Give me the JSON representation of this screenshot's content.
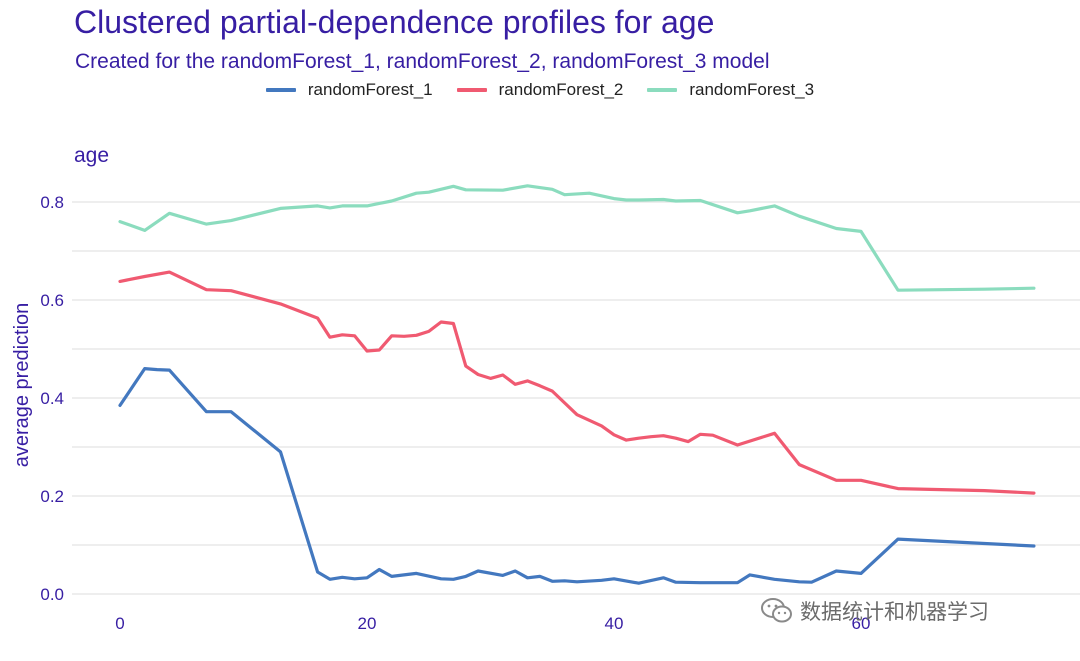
{
  "chart_data": {
    "type": "line",
    "title": "Clustered partial-dependence profiles for age",
    "subtitle": "Created for the randomForest_1, randomForest_2, randomForest_3 model",
    "panel_label": "age",
    "xlabel": "",
    "ylabel": "average prediction",
    "xlim": [
      0,
      74
    ],
    "ylim": [
      0,
      0.86
    ],
    "x_ticks": [
      0,
      20,
      40,
      60
    ],
    "y_ticks": [
      0.0,
      0.2,
      0.4,
      0.6,
      0.8
    ],
    "y_tick_labels": [
      "0.0",
      "0.2",
      "0.4",
      "0.6",
      "0.8"
    ],
    "grid": true,
    "legend_position": "top",
    "series": [
      {
        "name": "randomForest_1",
        "color": "#4378bf",
        "points": [
          [
            0,
            0.385
          ],
          [
            2,
            0.46
          ],
          [
            3,
            0.458
          ],
          [
            4,
            0.457
          ],
          [
            7,
            0.372
          ],
          [
            9,
            0.372
          ],
          [
            13,
            0.29
          ],
          [
            16,
            0.045
          ],
          [
            17,
            0.03
          ],
          [
            18,
            0.034
          ],
          [
            19,
            0.031
          ],
          [
            20,
            0.033
          ],
          [
            21,
            0.05
          ],
          [
            22,
            0.036
          ],
          [
            24,
            0.042
          ],
          [
            26,
            0.031
          ],
          [
            27,
            0.03
          ],
          [
            28,
            0.036
          ],
          [
            29,
            0.047
          ],
          [
            31,
            0.038
          ],
          [
            32,
            0.047
          ],
          [
            33,
            0.033
          ],
          [
            34,
            0.036
          ],
          [
            35,
            0.026
          ],
          [
            36,
            0.027
          ],
          [
            37,
            0.025
          ],
          [
            39,
            0.028
          ],
          [
            40,
            0.031
          ],
          [
            42,
            0.022
          ],
          [
            44,
            0.033
          ],
          [
            45,
            0.024
          ],
          [
            47,
            0.023
          ],
          [
            49,
            0.023
          ],
          [
            50,
            0.023
          ],
          [
            51,
            0.039
          ],
          [
            53,
            0.03
          ],
          [
            55,
            0.025
          ],
          [
            56,
            0.024
          ],
          [
            58,
            0.047
          ],
          [
            60,
            0.042
          ],
          [
            63,
            0.112
          ],
          [
            74,
            0.098
          ]
        ]
      },
      {
        "name": "randomForest_2",
        "color": "#f05a71",
        "points": [
          [
            0,
            0.638
          ],
          [
            2,
            0.648
          ],
          [
            4,
            0.657
          ],
          [
            7,
            0.621
          ],
          [
            9,
            0.619
          ],
          [
            13,
            0.592
          ],
          [
            16,
            0.563
          ],
          [
            17,
            0.524
          ],
          [
            18,
            0.529
          ],
          [
            19,
            0.527
          ],
          [
            20,
            0.496
          ],
          [
            21,
            0.498
          ],
          [
            22,
            0.527
          ],
          [
            23,
            0.526
          ],
          [
            24,
            0.528
          ],
          [
            25,
            0.536
          ],
          [
            26,
            0.555
          ],
          [
            27,
            0.552
          ],
          [
            28,
            0.465
          ],
          [
            29,
            0.448
          ],
          [
            30,
            0.44
          ],
          [
            31,
            0.447
          ],
          [
            32,
            0.428
          ],
          [
            33,
            0.435
          ],
          [
            34,
            0.425
          ],
          [
            35,
            0.414
          ],
          [
            36,
            0.39
          ],
          [
            37,
            0.366
          ],
          [
            39,
            0.343
          ],
          [
            40,
            0.325
          ],
          [
            41,
            0.314
          ],
          [
            42,
            0.318
          ],
          [
            43,
            0.321
          ],
          [
            44,
            0.323
          ],
          [
            45,
            0.318
          ],
          [
            46,
            0.311
          ],
          [
            47,
            0.326
          ],
          [
            48,
            0.324
          ],
          [
            50,
            0.304
          ],
          [
            53,
            0.328
          ],
          [
            55,
            0.264
          ],
          [
            58,
            0.232
          ],
          [
            60,
            0.232
          ],
          [
            63,
            0.215
          ],
          [
            70,
            0.211
          ],
          [
            74,
            0.206
          ]
        ]
      },
      {
        "name": "randomForest_3",
        "color": "#8bdcbe",
        "points": [
          [
            0,
            0.76
          ],
          [
            2,
            0.742
          ],
          [
            4,
            0.777
          ],
          [
            7,
            0.755
          ],
          [
            9,
            0.762
          ],
          [
            13,
            0.787
          ],
          [
            16,
            0.792
          ],
          [
            17,
            0.788
          ],
          [
            18,
            0.792
          ],
          [
            20,
            0.792
          ],
          [
            22,
            0.802
          ],
          [
            24,
            0.818
          ],
          [
            25,
            0.82
          ],
          [
            27,
            0.832
          ],
          [
            28,
            0.825
          ],
          [
            31,
            0.824
          ],
          [
            33,
            0.833
          ],
          [
            35,
            0.826
          ],
          [
            36,
            0.815
          ],
          [
            38,
            0.818
          ],
          [
            40,
            0.807
          ],
          [
            41,
            0.804
          ],
          [
            42,
            0.804
          ],
          [
            44,
            0.805
          ],
          [
            45,
            0.802
          ],
          [
            47,
            0.803
          ],
          [
            50,
            0.778
          ],
          [
            51,
            0.782
          ],
          [
            53,
            0.792
          ],
          [
            55,
            0.771
          ],
          [
            58,
            0.746
          ],
          [
            60,
            0.74
          ],
          [
            63,
            0.62
          ],
          [
            70,
            0.622
          ],
          [
            74,
            0.624
          ]
        ]
      }
    ]
  },
  "watermark": {
    "text": "数据统计和机器学习",
    "icon": "wechat-icon"
  }
}
